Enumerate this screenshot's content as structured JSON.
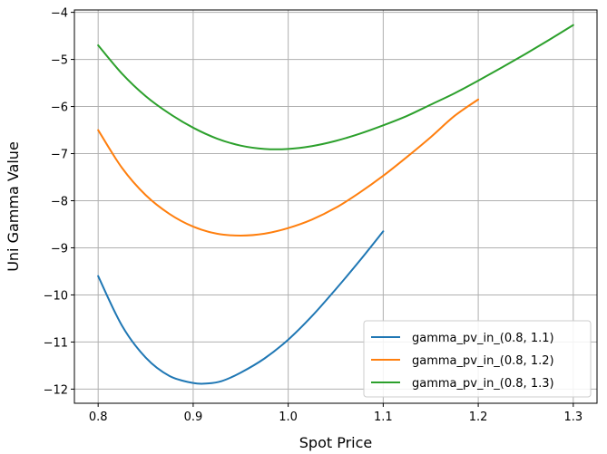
{
  "chart_data": {
    "type": "line",
    "title": "",
    "xlabel": "Spot Price",
    "ylabel": "Uni Gamma Value",
    "xlim": [
      0.775,
      1.325
    ],
    "ylim": [
      -12.3,
      -3.95
    ],
    "xticks": [
      0.8,
      0.9,
      1.0,
      1.1,
      1.2,
      1.3
    ],
    "xtick_labels": [
      "0.8",
      "0.9",
      "1.0",
      "1.1",
      "1.2",
      "1.3"
    ],
    "yticks": [
      -12,
      -11,
      -10,
      -9,
      -8,
      -7,
      -6,
      -5,
      -4
    ],
    "ytick_labels": [
      "−12",
      "−11",
      "−10",
      "−9",
      "−8",
      "−7",
      "−6",
      "−5",
      "−4"
    ],
    "grid": true,
    "legend_position": "lower-right",
    "series": [
      {
        "name": "gamma_pv_in_(0.8, 1.1)",
        "color": "#1f77b4",
        "x": [
          0.8,
          0.825,
          0.85,
          0.875,
          0.9,
          0.915,
          0.93,
          0.95,
          0.975,
          1.0,
          1.025,
          1.05,
          1.075,
          1.1
        ],
        "y": [
          -9.6,
          -10.65,
          -11.33,
          -11.72,
          -11.87,
          -11.88,
          -11.83,
          -11.65,
          -11.35,
          -10.95,
          -10.45,
          -9.88,
          -9.28,
          -8.65
        ]
      },
      {
        "name": "gamma_pv_in_(0.8, 1.2)",
        "color": "#ff7f0e",
        "x": [
          0.8,
          0.825,
          0.85,
          0.875,
          0.9,
          0.925,
          0.95,
          0.975,
          1.0,
          1.025,
          1.05,
          1.075,
          1.1,
          1.125,
          1.15,
          1.175,
          1.2
        ],
        "y": [
          -6.5,
          -7.3,
          -7.88,
          -8.28,
          -8.55,
          -8.7,
          -8.74,
          -8.7,
          -8.58,
          -8.4,
          -8.15,
          -7.83,
          -7.47,
          -7.07,
          -6.65,
          -6.2,
          -5.85
        ]
      },
      {
        "name": "gamma_pv_in_(0.8, 1.3)",
        "color": "#2ca02c",
        "x": [
          0.8,
          0.825,
          0.85,
          0.875,
          0.9,
          0.925,
          0.95,
          0.975,
          1.0,
          1.025,
          1.05,
          1.075,
          1.1,
          1.125,
          1.15,
          1.175,
          1.2,
          1.225,
          1.25,
          1.275,
          1.3
        ],
        "y": [
          -4.7,
          -5.3,
          -5.78,
          -6.15,
          -6.45,
          -6.68,
          -6.83,
          -6.9,
          -6.9,
          -6.84,
          -6.73,
          -6.58,
          -6.4,
          -6.2,
          -5.96,
          -5.72,
          -5.45,
          -5.17,
          -4.88,
          -4.58,
          -4.27
        ]
      }
    ]
  }
}
